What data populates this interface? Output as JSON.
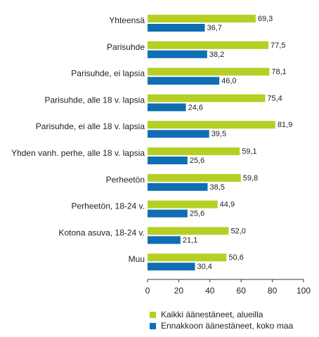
{
  "chart_data": {
    "type": "bar",
    "orientation": "horizontal",
    "categories": [
      "Yhteensä",
      "Parisuhde",
      "Parisuhde, ei lapsia",
      "Parisuhde, alle 18 v. lapsia",
      "Parisuhde, ei alle 18 v. lapsia",
      "Yhden vanh. perhe, alle 18 v. lapsia",
      "Perheetön",
      "Perheetön, 18-24 v.",
      "Kotona asuva, 18-24 v.",
      "Muu"
    ],
    "series": [
      {
        "name": "Kaikki äänestäneet, alueilla",
        "color": "#b5cf25",
        "values": [
          69.3,
          77.5,
          78.1,
          75.4,
          81.9,
          59.1,
          59.8,
          44.9,
          52.0,
          50.6
        ],
        "labels": [
          "69,3",
          "77,5",
          "78,1",
          "75,4",
          "81,9",
          "59,1",
          "59,8",
          "44,9",
          "52,0",
          "50,6"
        ]
      },
      {
        "name": "Ennakkoon äänestäneet, koko maa",
        "color": "#0f6eb4",
        "values": [
          36.7,
          38.2,
          46.0,
          24.6,
          39.5,
          25.6,
          38.5,
          25.6,
          21.1,
          30.4
        ],
        "labels": [
          "36,7",
          "38,2",
          "46,0",
          "24,6",
          "39,5",
          "25,6",
          "38,5",
          "25,6",
          "21,1",
          "30,4"
        ]
      }
    ],
    "xlim": [
      0,
      100
    ],
    "xticks": [
      0,
      20,
      40,
      60,
      80,
      100
    ],
    "xtick_labels": [
      "0",
      "20",
      "40",
      "60",
      "80",
      "100"
    ],
    "grid": false,
    "legend_position": "bottom"
  }
}
